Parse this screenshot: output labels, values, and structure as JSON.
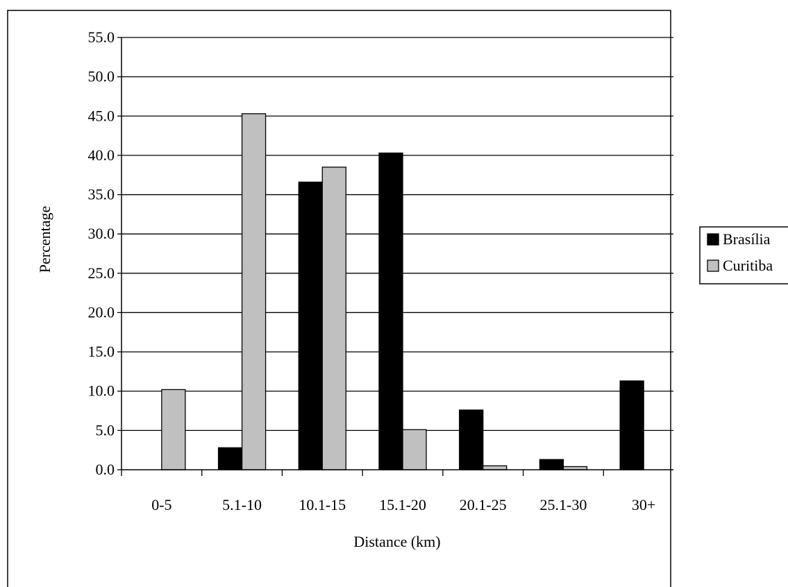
{
  "chart_data": {
    "type": "bar",
    "title": "",
    "xlabel": "Distance (km)",
    "ylabel": "Percentage",
    "ylim": [
      0,
      55
    ],
    "ytick_step": 5,
    "grid": "horizontal",
    "legend_position": "right",
    "categories": [
      "0-5",
      "5.1-10",
      "10.1-15",
      "15.1-20",
      "20.1-25",
      "25.1-30",
      "30+"
    ],
    "series": [
      {
        "name": "Brasília",
        "color": "#000000",
        "values": [
          0.0,
          2.8,
          36.6,
          40.3,
          7.6,
          1.3,
          11.3
        ]
      },
      {
        "name": "Curitiba",
        "color": "#c0c0c0",
        "values": [
          10.2,
          45.3,
          38.5,
          5.1,
          0.5,
          0.4,
          0.0
        ]
      }
    ]
  }
}
